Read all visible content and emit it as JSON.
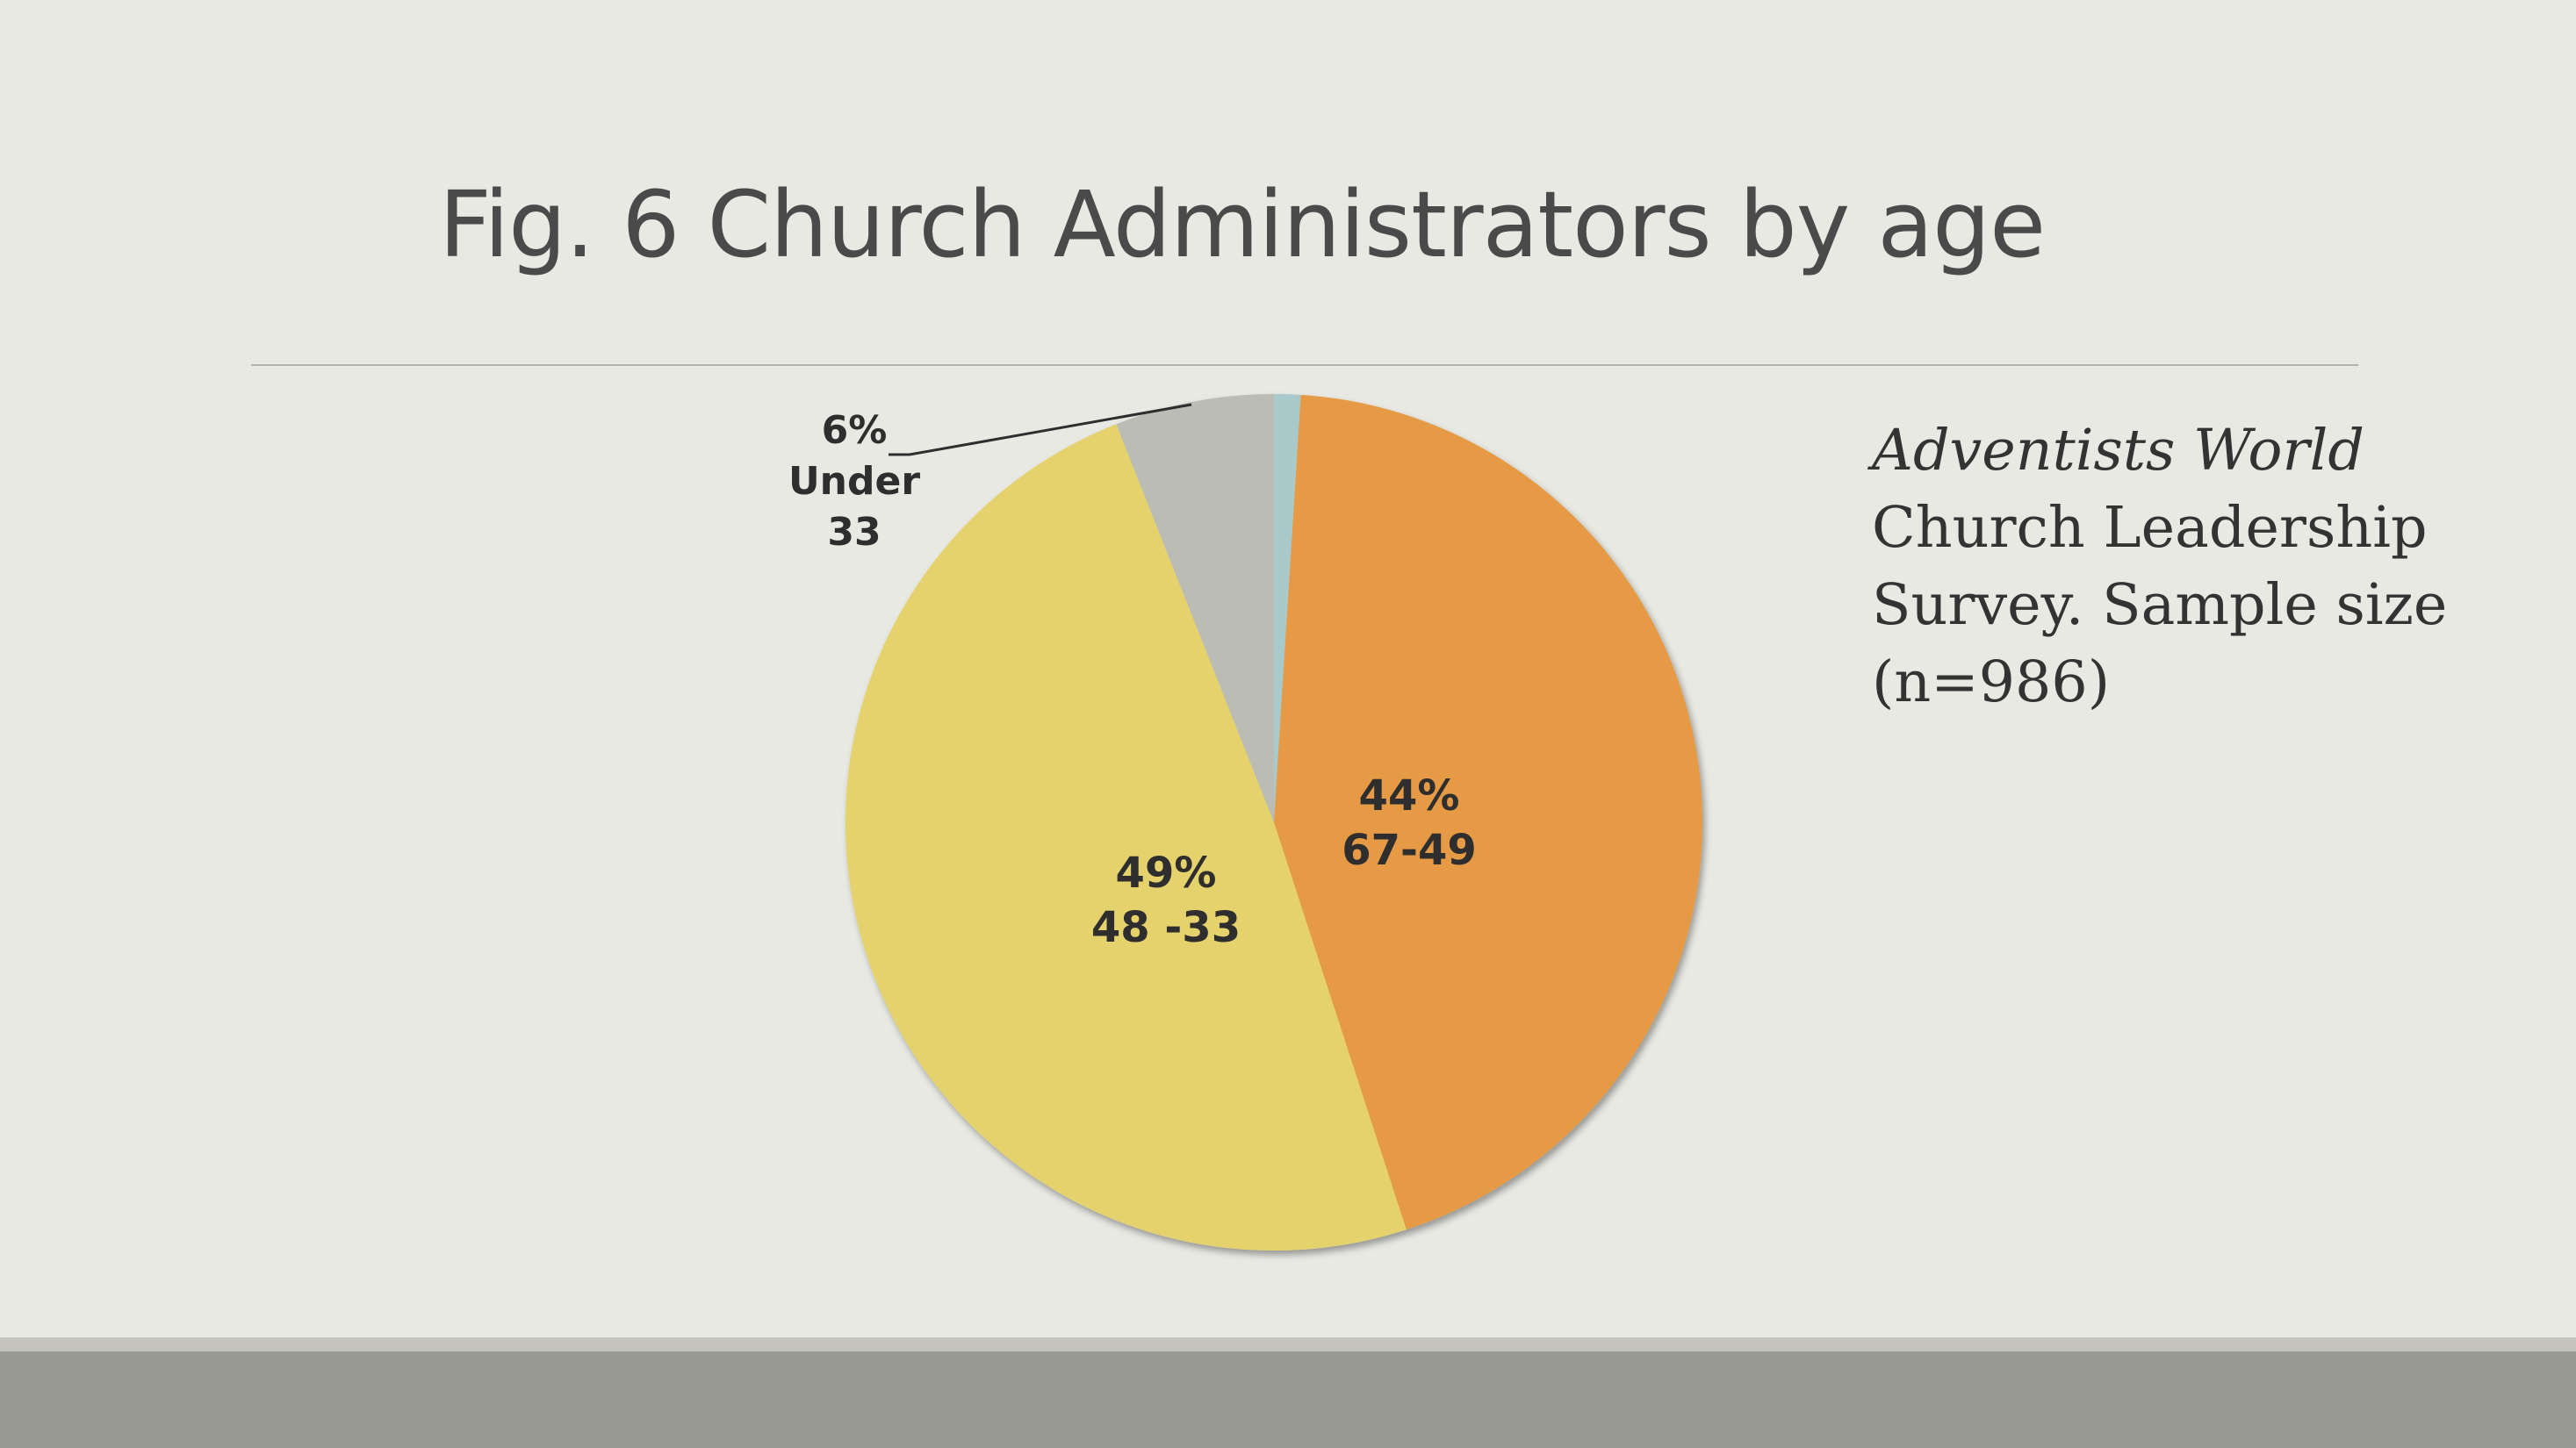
{
  "slide": {
    "title": "Fig. 6 Church Administrators by age"
  },
  "note": {
    "line_italic": "Adventists World",
    "line_rest": "Church Leadership Survey. Sample size (n=986)"
  },
  "chart_data": {
    "type": "pie",
    "title": "Fig. 6 Church Administrators by age",
    "start_angle_deg": 0,
    "direction": "clockwise",
    "slices": [
      {
        "category": "",
        "value": 1,
        "percent_label": "",
        "color": "#a9c9cb"
      },
      {
        "category": "67-49",
        "value": 44,
        "percent_label": "44%",
        "color": "#e69a45"
      },
      {
        "category": "48 -33",
        "value": 49,
        "percent_label": "49%",
        "color": "#e6d26c"
      },
      {
        "category": "Under 33",
        "value": 6,
        "percent_label": "6%",
        "color": "#bcbcb6"
      }
    ],
    "labels": [
      {
        "lines": [
          "6%",
          "Under",
          "33"
        ]
      },
      {
        "lines": [
          "44%",
          "67-49"
        ]
      },
      {
        "lines": [
          "49%",
          "48 -33"
        ]
      }
    ]
  },
  "colors": {
    "background": "#e9e9e4",
    "footer": "#9a9a94",
    "title_text": "#4a4a4a"
  }
}
